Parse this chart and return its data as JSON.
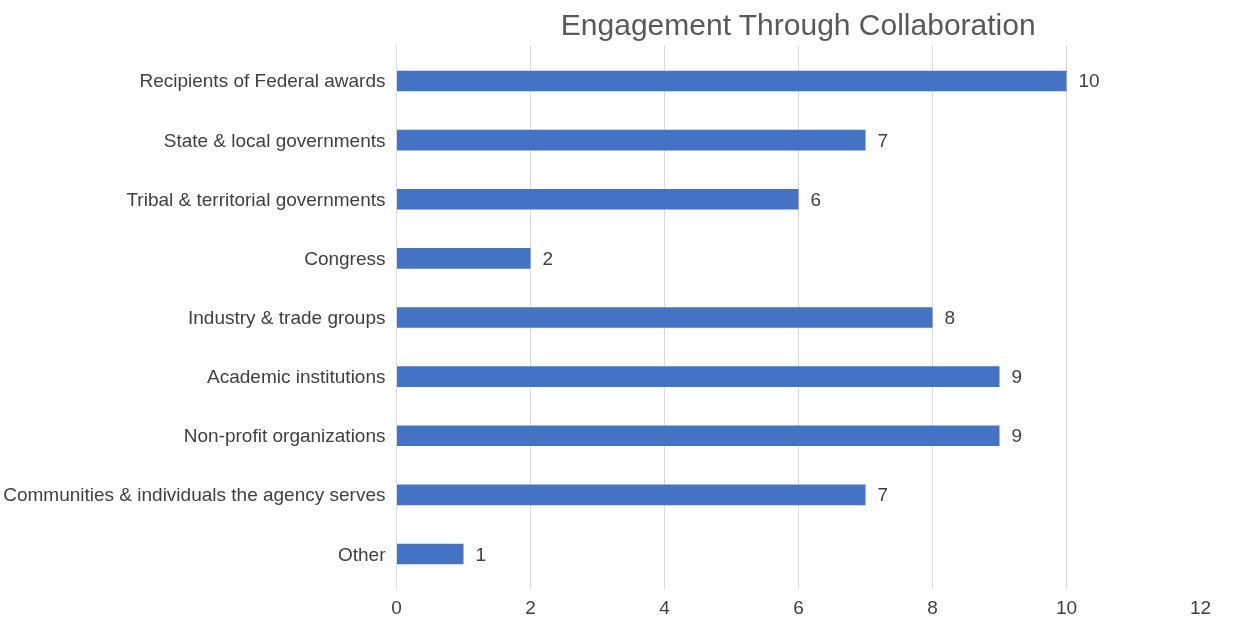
{
  "chart_data": {
    "type": "bar",
    "orientation": "horizontal",
    "title": "Engagement Through Collaboration",
    "categories": [
      "Recipients of Federal awards",
      "State & local governments",
      "Tribal & territorial governments",
      "Congress",
      "Industry & trade groups",
      "Academic institutions",
      "Non-profit organizations",
      "Communities & individuals the agency serves",
      "Other"
    ],
    "values": [
      10,
      7,
      6,
      2,
      8,
      9,
      9,
      7,
      1
    ],
    "color": "#4472c4",
    "xlim": [
      0,
      12
    ],
    "xticks": [
      0,
      2,
      4,
      6,
      8,
      10,
      12
    ],
    "grid": "x",
    "data_labels": true
  }
}
